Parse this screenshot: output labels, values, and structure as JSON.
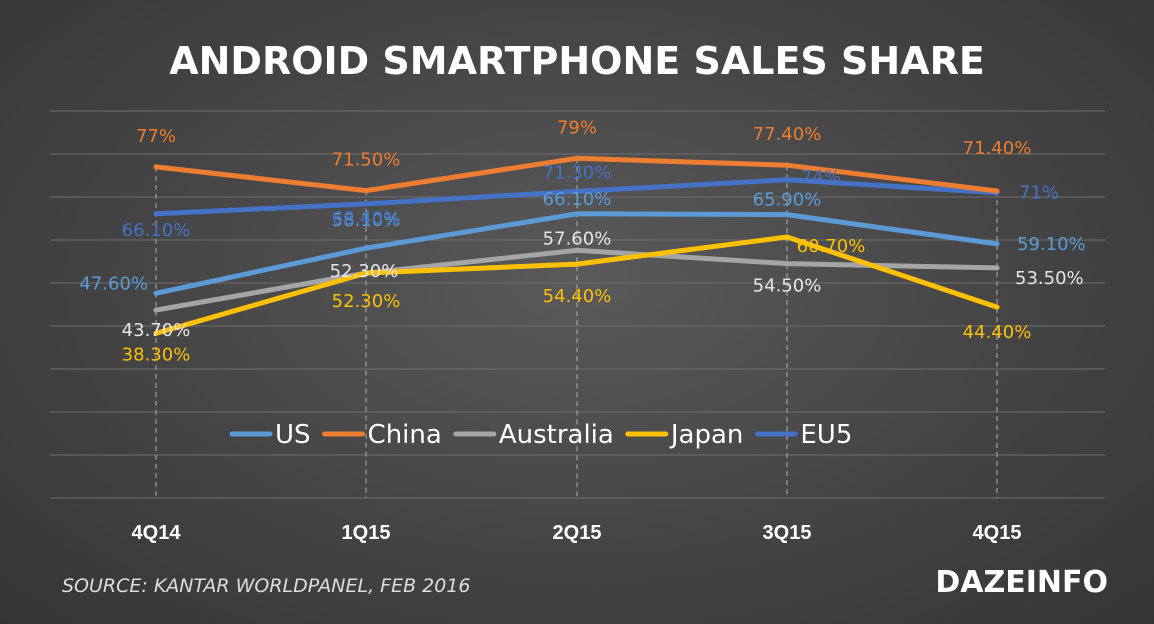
{
  "title": "ANDROID SMARTPHONE SALES SHARE",
  "source": "SOURCE: KANTAR WORLDPANEL, FEB 2016",
  "logo": "DAZEINFO",
  "chart_data": {
    "type": "line",
    "title": "ANDROID SMARTPHONE SALES SHARE",
    "categories": [
      "4Q14",
      "1Q15",
      "2Q15",
      "3Q15",
      "4Q15"
    ],
    "ylim": [
      0,
      90
    ],
    "grid": true,
    "legend": "bottom-center",
    "series": [
      {
        "name": "US",
        "color": "#5b9bd5",
        "values": [
          47.6,
          58.1,
          66.1,
          65.9,
          59.1
        ],
        "labels": [
          "47.60%",
          "58.10%",
          "66.10%",
          "65.90%",
          "59.10%"
        ]
      },
      {
        "name": "China",
        "color": "#ed7d31",
        "values": [
          77,
          71.5,
          79,
          77.4,
          71.4
        ],
        "labels": [
          "77%",
          "71.50%",
          "79%",
          "77.40%",
          "71.40%"
        ]
      },
      {
        "name": "Australia",
        "color": "#a5a5a5",
        "values": [
          43.7,
          52.3,
          57.6,
          54.5,
          53.5
        ],
        "labels": [
          "43.70%",
          "52.30%",
          "57.60%",
          "54.50%",
          "53.50%"
        ]
      },
      {
        "name": "Japan",
        "color": "#ffc000",
        "values": [
          38.3,
          52.3,
          54.4,
          60.7,
          44.4
        ],
        "labels": [
          "38.30%",
          "52.30%",
          "54.40%",
          "60.70%",
          "44.40%"
        ]
      },
      {
        "name": "EU5",
        "color": "#4472c4",
        "values": [
          66.1,
          68.4,
          71.3,
          74,
          71
        ],
        "labels": [
          "66.10%",
          "68.40%",
          "71.30%",
          "74%",
          "71%"
        ]
      }
    ]
  }
}
